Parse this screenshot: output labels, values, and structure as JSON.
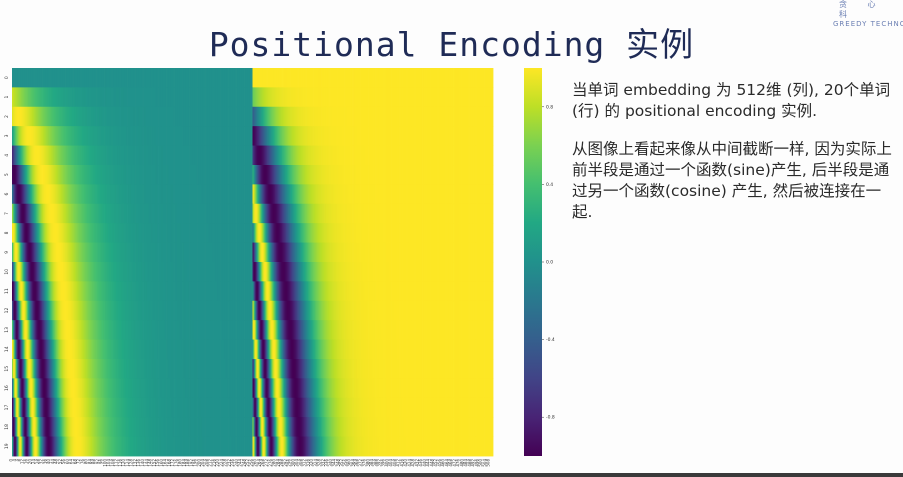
{
  "title": "Positional Encoding 实例",
  "logo": {
    "cn": "贪 心 科",
    "en": "GREEDY TECHNOLO"
  },
  "description": [
    "当单词 embedding 为 512维 (列), 20个单词 (行) 的 positional encoding 实例.",
    "从图像上看起来像从中间截断一样, 因为实际上前半段是通过一个函数(sine)产生, 后半段是通过另一个函数(cosine) 产生, 然后被连接在一起."
  ],
  "colors": {
    "title": "#1f2b56",
    "logo": "#6b7fb3",
    "colormap": "viridis"
  },
  "chart_data": {
    "type": "heatmap",
    "rows": 20,
    "columns": 512,
    "row_labels": [
      "0",
      "1",
      "2",
      "3",
      "4",
      "5",
      "6",
      "7",
      "8",
      "9",
      "10",
      "11",
      "12",
      "13",
      "14",
      "15",
      "16",
      "17",
      "18",
      "19"
    ],
    "x_tick_step": 4,
    "x_tick_labels_last": "508",
    "value_range": [
      -1,
      1
    ],
    "colorbar_ticks": [
      "0.8",
      "0.4",
      "0.0",
      "-0.4",
      "-0.8"
    ],
    "colorbar_tick_values": [
      0.8,
      0.4,
      0.0,
      -0.4,
      -0.8
    ],
    "left_half_function": "sine",
    "right_half_function": "cosine"
  }
}
